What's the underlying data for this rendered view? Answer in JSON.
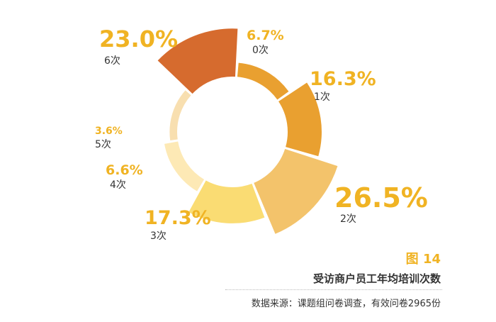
{
  "chart_data": {
    "type": "pie",
    "subtype": "nightingale-rose",
    "categories": [
      "0次",
      "1次",
      "2次",
      "3次",
      "4次",
      "5次",
      "6次"
    ],
    "values": [
      6.7,
      16.3,
      26.5,
      17.3,
      6.6,
      3.6,
      23.0
    ],
    "value_labels": [
      "6.7%",
      "16.3%",
      "26.5%",
      "17.3%",
      "6.6%",
      "3.6%",
      "23.0%"
    ],
    "colors": [
      "#e9a030",
      "#e9a030",
      "#f3c36b",
      "#fadc73",
      "#fde9b5",
      "#f8dfb0",
      "#d66b2e"
    ]
  },
  "figure": {
    "number": "图 14",
    "title": "受访商户员工年均培训次数",
    "source": "数据来源：课题组问卷调查，有效问卷2965份"
  }
}
